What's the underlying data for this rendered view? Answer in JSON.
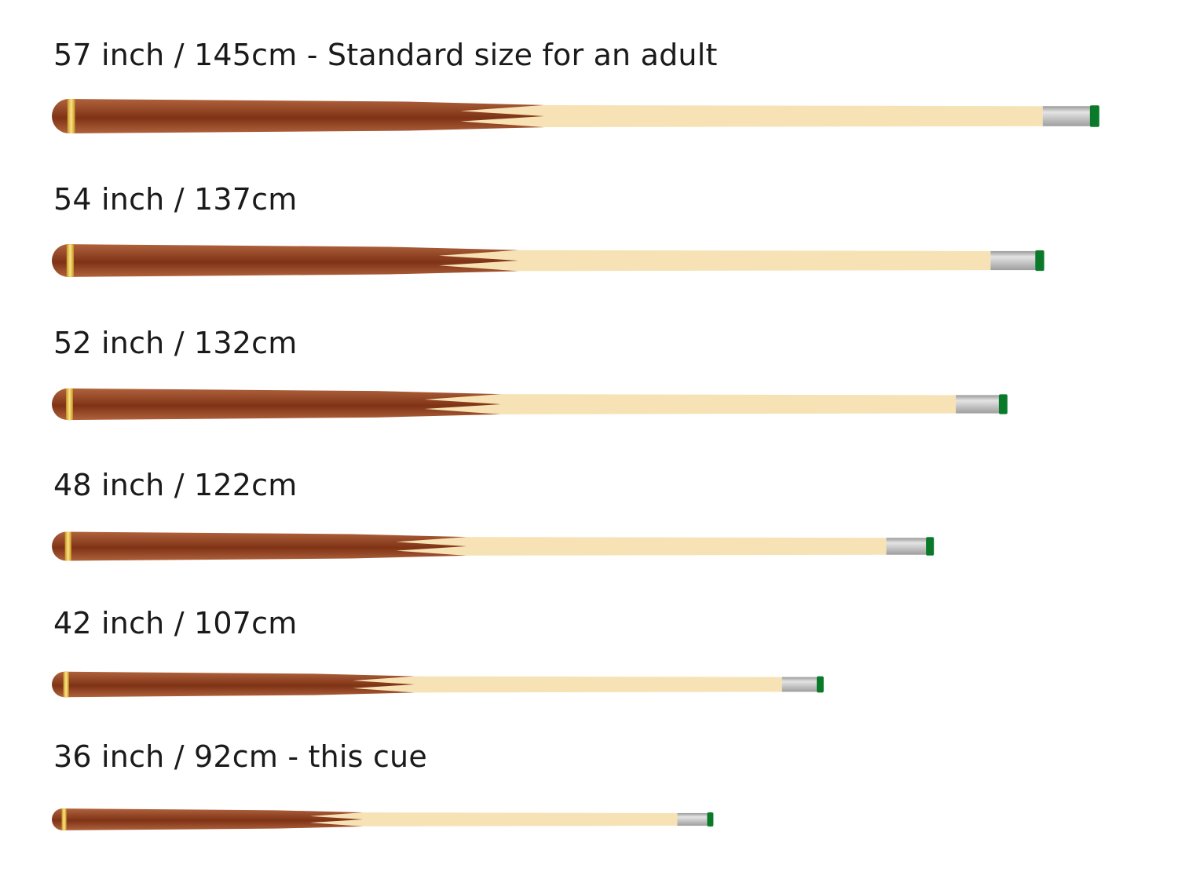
{
  "colors": {
    "butt_dark": "#7f3316",
    "butt_light": "#b0623c",
    "ring": "#e8c04a",
    "shaft": "#f6e2b4",
    "ferrule": "#bdbdbd",
    "tip": "#0a7a2a"
  },
  "cues": [
    {
      "label": "57 inch / 145cm - Standard size for an adult",
      "inches": 57,
      "cm": 145
    },
    {
      "label": "54 inch / 137cm",
      "inches": 54,
      "cm": 137
    },
    {
      "label": "52 inch / 132cm",
      "inches": 52,
      "cm": 132
    },
    {
      "label": "48 inch / 122cm",
      "inches": 48,
      "cm": 122
    },
    {
      "label": "42 inch / 107cm",
      "inches": 42,
      "cm": 107
    },
    {
      "label": "36 inch / 92cm - this cue",
      "inches": 36,
      "cm": 92
    }
  ]
}
